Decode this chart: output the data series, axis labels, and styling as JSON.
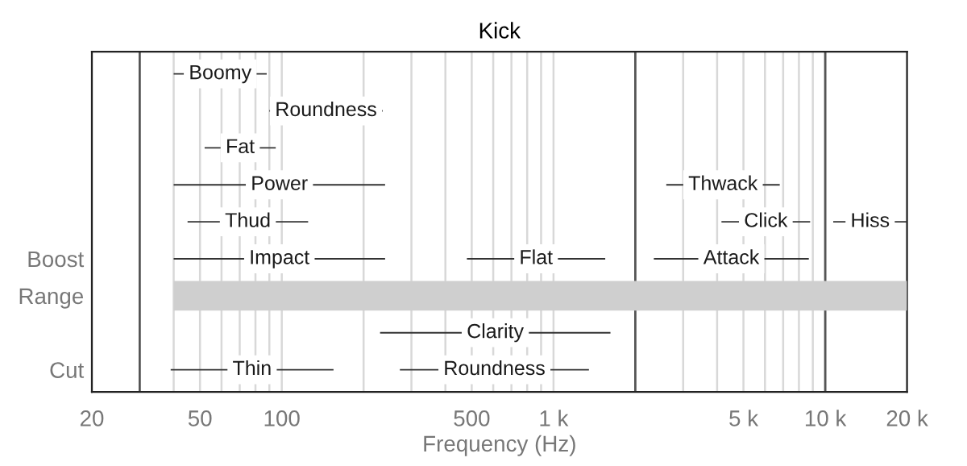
{
  "chart_data": {
    "type": "bar",
    "orientation": "horizontal",
    "title": "Kick",
    "xlabel": "Frequency (Hz)",
    "log": "x",
    "grid": "x",
    "categories": [
      null,
      null,
      null,
      null,
      null,
      "Boost",
      "Range",
      null,
      "Cut"
    ],
    "xlim": [
      20,
      20000
    ],
    "xticks": [
      20,
      {
        "value": 40,
        "label": null
      },
      50,
      {
        "value": 60,
        "label": null
      },
      {
        "value": 70,
        "label": null
      },
      {
        "value": 80,
        "label": null
      },
      {
        "value": 90,
        "label": null
      },
      100,
      {
        "value": 200,
        "label": null
      },
      {
        "value": 300,
        "label": null
      },
      {
        "value": 400,
        "label": null
      },
      500,
      {
        "value": 600,
        "label": null
      },
      {
        "value": 700,
        "label": null
      },
      {
        "value": 800,
        "label": null
      },
      {
        "value": 900,
        "label": null
      },
      {
        "value": 1000,
        "label": "1 k"
      },
      {
        "value": 3000,
        "label": null
      },
      {
        "value": 4000,
        "label": null
      },
      {
        "value": 5000,
        "label": "5 k"
      },
      {
        "value": 6000,
        "label": null
      },
      {
        "value": 7000,
        "label": null
      },
      {
        "value": 8000,
        "label": null
      },
      {
        "value": 9000,
        "label": null
      },
      {
        "value": 10000,
        "label": "10 k"
      },
      {
        "value": 20000,
        "label": "20 k"
      }
    ],
    "series": [
      {
        "color": "#333333",
        "base": [
          40,
          90,
          52,
          40,
          45,
          40,
          null,
          230,
          39
        ],
        "values": [
          48,
          145,
          43,
          200,
          80,
          200,
          null,
          1390,
          116
        ],
        "value_labels": [
          "Boomy",
          "Roundness",
          "Fat",
          "Power",
          "Thud",
          "Impact",
          null,
          "Clarity",
          "Thin"
        ]
      },
      {
        "color": "#333333",
        "base": [
          null,
          null,
          null,
          2600,
          4150,
          480,
          null,
          null,
          272
        ],
        "values": [
          null,
          null,
          null,
          4200,
          4650,
          1070,
          null,
          null,
          1078
        ],
        "value_labels": [
          null,
          null,
          null,
          "Thwack",
          "Click",
          "Flat",
          null,
          null,
          "Roundness"
        ]
      },
      {
        "color": "#333333",
        "base": [
          null,
          null,
          null,
          null,
          10700,
          2340,
          null,
          null,
          null
        ],
        "values": [
          null,
          null,
          null,
          null,
          9300,
          6360,
          null,
          null,
          null
        ],
        "value_labels": [
          null,
          null,
          null,
          null,
          "Hiss",
          "Attack",
          null,
          null,
          null
        ]
      },
      {
        "color": "#cfcfcf",
        "base": [
          null,
          null,
          null,
          null,
          null,
          null,
          40,
          null,
          null
        ],
        "values": [
          null,
          null,
          null,
          null,
          null,
          null,
          19960,
          null,
          null
        ]
      }
    ],
    "ref_lines": [
      {
        "axis": "x",
        "value": 30,
        "color": "#555555"
      },
      {
        "axis": "x",
        "value": 2000,
        "color": "#555555"
      },
      {
        "axis": "x",
        "value": 10000,
        "color": "#555555"
      }
    ]
  }
}
